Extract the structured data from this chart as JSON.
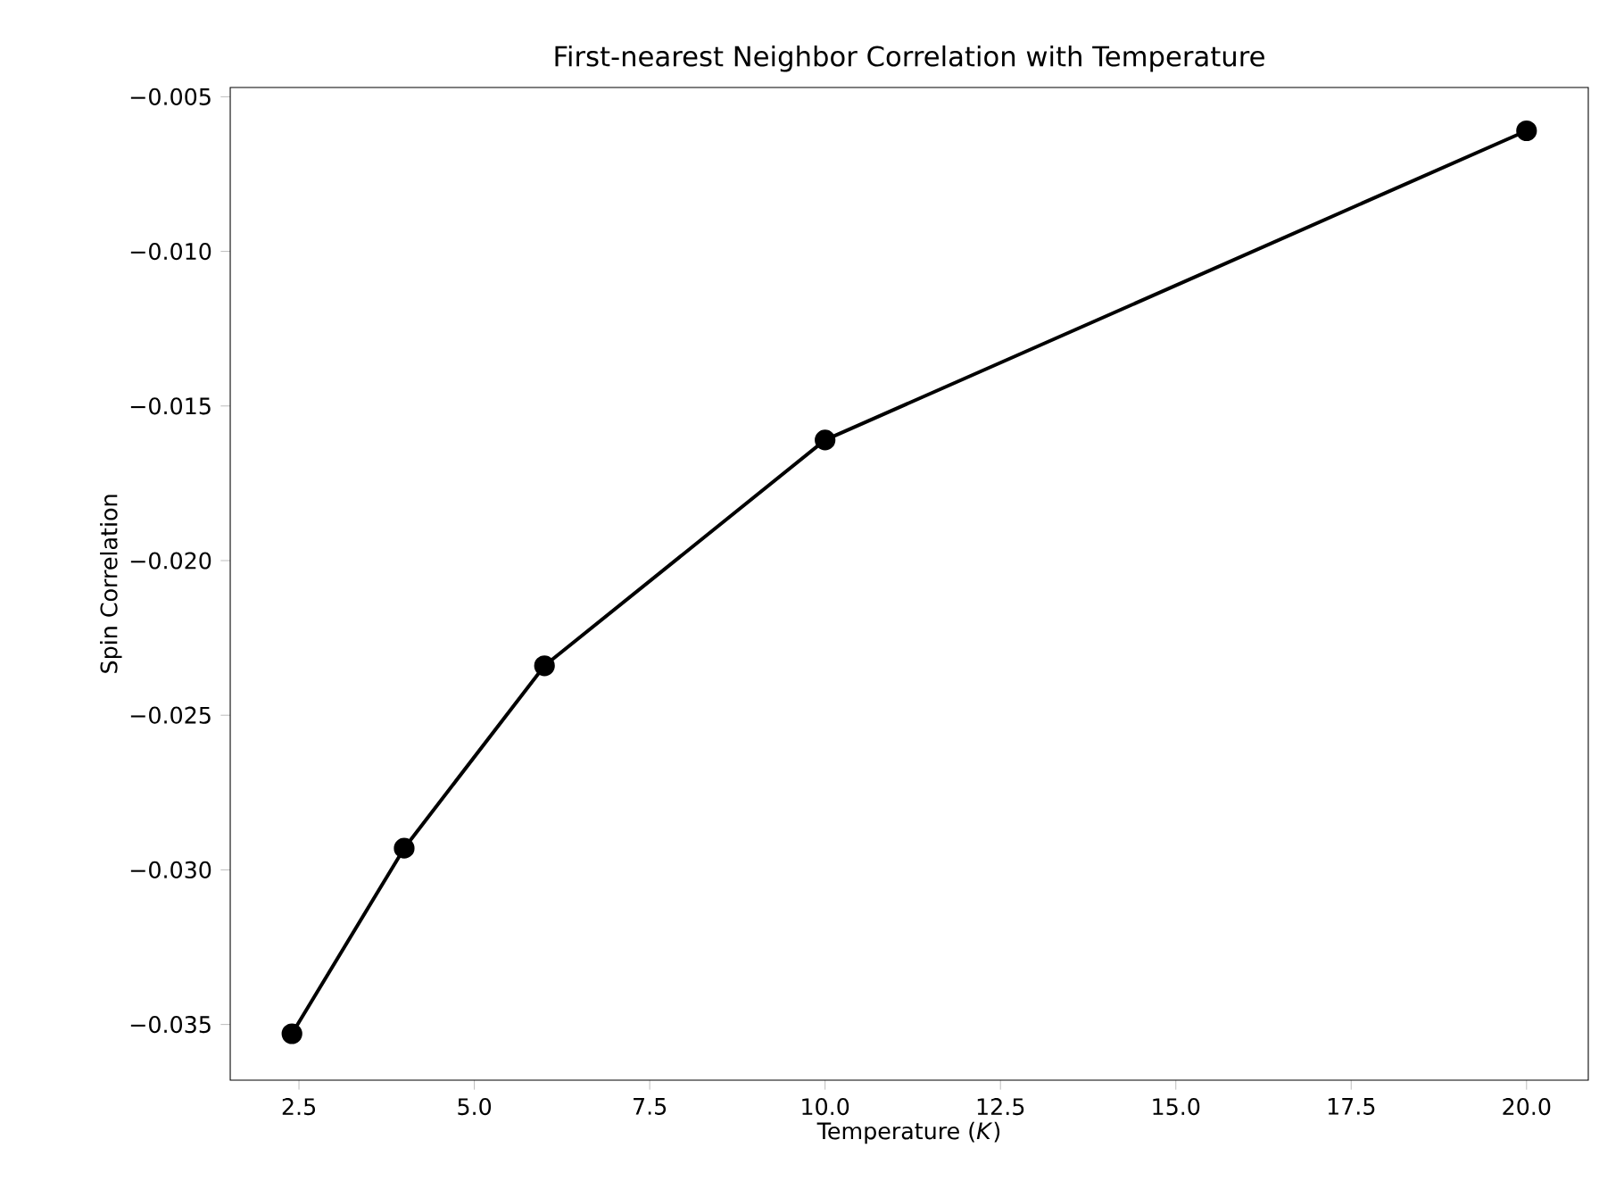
{
  "chart_data": {
    "type": "line",
    "title": "First-nearest Neighbor Correlation with Temperature",
    "xlabel": "Temperature (*K*)",
    "ylabel": "Spin Correlation",
    "x": [
      2.4,
      4,
      6,
      10,
      20
    ],
    "series": [
      {
        "color": "#000000",
        "values": [
          -0.0353,
          -0.0293,
          -0.0234,
          -0.0161,
          -0.0061
        ]
      }
    ],
    "xlim": [
      1.52,
      20.88
    ],
    "ylim": [
      -0.0368,
      -0.0047
    ],
    "xticks": [
      {
        "value": 2.5,
        "label": "2.5"
      },
      {
        "value": 5,
        "label": "5.0"
      },
      {
        "value": 7.5,
        "label": "7.5"
      },
      {
        "value": 10,
        "label": "10.0"
      },
      {
        "value": 12.5,
        "label": "12.5"
      },
      {
        "value": 15,
        "label": "15.0"
      },
      {
        "value": 17.5,
        "label": "17.5"
      },
      {
        "value": 20,
        "label": "20.0"
      }
    ],
    "yticks": [
      {
        "value": -0.035,
        "label": "−0.035"
      },
      {
        "value": -0.03,
        "label": "−0.030"
      },
      {
        "value": -0.025,
        "label": "−0.025"
      },
      {
        "value": -0.02,
        "label": "−0.020"
      },
      {
        "value": -0.015,
        "label": "−0.015"
      },
      {
        "value": -0.01,
        "label": "−0.010"
      },
      {
        "value": -0.005,
        "label": "−0.005"
      }
    ],
    "marker": "circle",
    "line_style": "solid",
    "grid": false
  }
}
